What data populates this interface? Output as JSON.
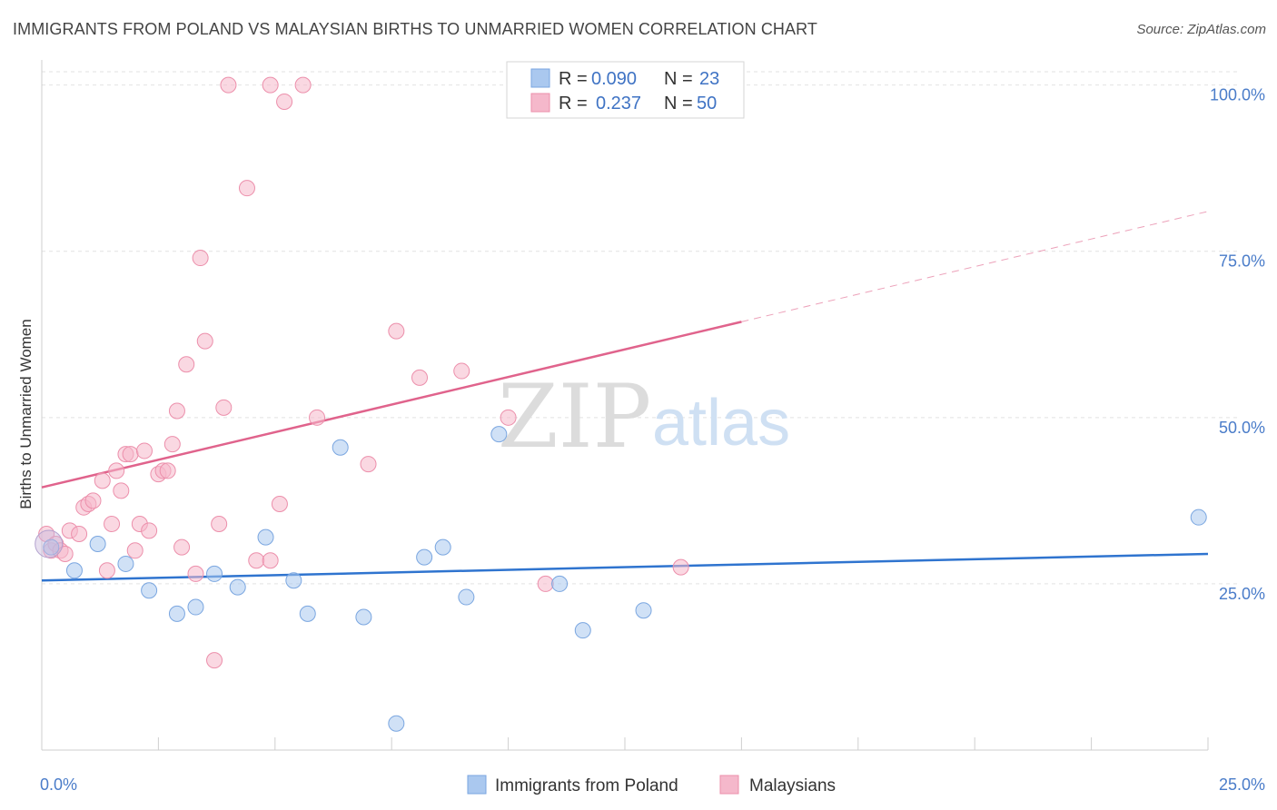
{
  "title": "IMMIGRANTS FROM POLAND VS MALAYSIAN BIRTHS TO UNMARRIED WOMEN CORRELATION CHART",
  "source": "Source: ZipAtlas.com",
  "watermark": {
    "zip": "ZIP",
    "atlas": "atlas"
  },
  "legend": {
    "rows": [
      {
        "r_label": "R = ",
        "r_value": "0.090",
        "n_label": "N = ",
        "n_value": "23",
        "color": "#aac8ef"
      },
      {
        "r_label": "R = ",
        "r_value": "0.237",
        "n_label": "N = ",
        "n_value": "50",
        "color": "#f5b8cb"
      }
    ]
  },
  "bottom_legend": [
    {
      "label": "Immigrants from Poland",
      "color": "#aac8ef"
    },
    {
      "label": "Malaysians",
      "color": "#f5b8cb"
    }
  ],
  "chart_data": {
    "type": "scatter",
    "ylabel": "Births to Unmarried Women",
    "xlim": [
      0,
      25
    ],
    "ylim": [
      0,
      102
    ],
    "y_ticks": [
      {
        "value": 25,
        "label": "25.0%"
      },
      {
        "value": 50,
        "label": "50.0%"
      },
      {
        "value": 75,
        "label": "75.0%"
      },
      {
        "value": 100,
        "label": "100.0%"
      }
    ],
    "x_tick_labels": [
      {
        "value": 0,
        "label": "0.0%"
      },
      {
        "value": 25,
        "label": "25.0%"
      }
    ],
    "x_minor_ticks": [
      0,
      2.5,
      5,
      7.5,
      10,
      12.5,
      15,
      17.5,
      20,
      22.5,
      25
    ],
    "grid": true,
    "legend_position": "top-center",
    "series": [
      {
        "name": "Immigrants from Poland",
        "color": "#aac8ef",
        "stroke": "#7aa6e0",
        "trend_color": "#2f74cf",
        "trend": {
          "x0": 0,
          "y0": 25.5,
          "x1": 25,
          "y1": 29.5,
          "dashed_from": null
        },
        "points": [
          [
            0.2,
            30.5
          ],
          [
            0.7,
            27.0
          ],
          [
            1.2,
            31.0
          ],
          [
            1.8,
            28.0
          ],
          [
            2.3,
            24.0
          ],
          [
            2.9,
            20.5
          ],
          [
            3.3,
            21.5
          ],
          [
            3.7,
            26.5
          ],
          [
            4.2,
            24.5
          ],
          [
            4.8,
            32.0
          ],
          [
            5.4,
            25.5
          ],
          [
            5.7,
            20.5
          ],
          [
            6.4,
            45.5
          ],
          [
            6.9,
            20.0
          ],
          [
            7.6,
            4.0
          ],
          [
            8.2,
            29.0
          ],
          [
            8.6,
            30.5
          ],
          [
            9.1,
            23.0
          ],
          [
            9.8,
            47.5
          ],
          [
            11.1,
            25.0
          ],
          [
            11.6,
            18.0
          ],
          [
            12.9,
            21.0
          ],
          [
            24.8,
            35.0
          ]
        ]
      },
      {
        "name": "Malaysians",
        "color": "#f5b8cb",
        "stroke": "#ec8fab",
        "trend_color": "#e0638c",
        "trend": {
          "x0": 0,
          "y0": 39.5,
          "x1": 25,
          "y1": 81.0,
          "dashed_from": 15
        },
        "points": [
          [
            0.1,
            32.5
          ],
          [
            0.2,
            30.0
          ],
          [
            0.3,
            31.0
          ],
          [
            0.4,
            30.0
          ],
          [
            0.5,
            29.5
          ],
          [
            0.6,
            33.0
          ],
          [
            0.8,
            32.5
          ],
          [
            0.9,
            36.5
          ],
          [
            1.0,
            37.0
          ],
          [
            1.1,
            37.5
          ],
          [
            1.3,
            40.5
          ],
          [
            1.4,
            27.0
          ],
          [
            1.5,
            34.0
          ],
          [
            1.6,
            42.0
          ],
          [
            1.7,
            39.0
          ],
          [
            1.8,
            44.5
          ],
          [
            1.9,
            44.5
          ],
          [
            2.0,
            30.0
          ],
          [
            2.1,
            34.0
          ],
          [
            2.2,
            45.0
          ],
          [
            2.3,
            33.0
          ],
          [
            2.5,
            41.5
          ],
          [
            2.6,
            42.0
          ],
          [
            2.7,
            42.0
          ],
          [
            2.8,
            46.0
          ],
          [
            2.9,
            51.0
          ],
          [
            3.0,
            30.5
          ],
          [
            3.1,
            58.0
          ],
          [
            3.3,
            26.5
          ],
          [
            3.4,
            74.0
          ],
          [
            3.5,
            61.5
          ],
          [
            3.7,
            13.5
          ],
          [
            3.8,
            34.0
          ],
          [
            3.9,
            51.5
          ],
          [
            4.0,
            100.0
          ],
          [
            4.4,
            84.5
          ],
          [
            4.6,
            28.5
          ],
          [
            4.9,
            100.0
          ],
          [
            4.9,
            28.5
          ],
          [
            5.1,
            37.0
          ],
          [
            5.2,
            97.5
          ],
          [
            5.6,
            100.0
          ],
          [
            5.9,
            50.0
          ],
          [
            7.0,
            43.0
          ],
          [
            7.6,
            63.0
          ],
          [
            8.1,
            56.0
          ],
          [
            9.0,
            57.0
          ],
          [
            10.0,
            50.0
          ],
          [
            10.8,
            25.0
          ],
          [
            13.7,
            27.5
          ]
        ]
      }
    ]
  }
}
